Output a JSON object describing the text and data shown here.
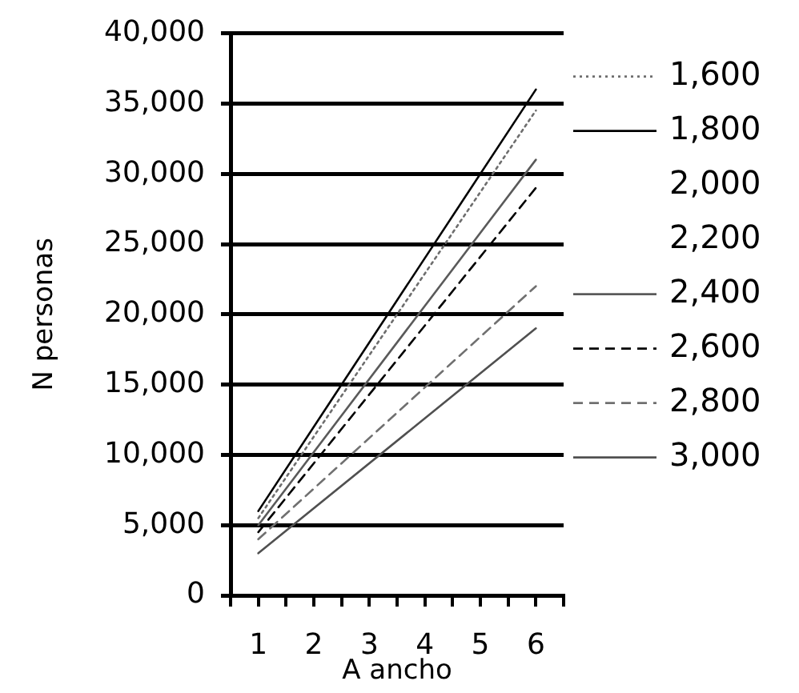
{
  "chart_data": {
    "type": "line",
    "xlabel": "A ancho",
    "ylabel": "N personas",
    "x": [
      1,
      6
    ],
    "series": [
      {
        "name": "1,600",
        "color": "#6e6e6e",
        "line_style": "dotted",
        "values": [
          5500,
          34500
        ]
      },
      {
        "name": "1,800",
        "color": "#000000",
        "values": [
          6000,
          36000
        ]
      },
      {
        "name": "2,000",
        "values": [
          null,
          null
        ]
      },
      {
        "name": "2,200",
        "values": [
          null,
          null
        ]
      },
      {
        "name": "2,400",
        "color": "#5a5a5a",
        "values": [
          5000,
          31000
        ]
      },
      {
        "name": "2,600",
        "color": "#000000",
        "line_style": "dashed",
        "values": [
          4500,
          29000
        ]
      },
      {
        "name": "2,800",
        "color": "#707070",
        "line_style": "dashed",
        "values": [
          4000,
          22000
        ]
      },
      {
        "name": "3,000",
        "color": "#505050",
        "values": [
          3000,
          19000
        ]
      }
    ],
    "xlim": [
      0.5,
      6.5
    ],
    "xticks": [
      {
        "value": 0.5,
        "label": null
      },
      1,
      {
        "value": 1.5,
        "label": null
      },
      2,
      {
        "value": 2.5,
        "label": null
      },
      3,
      {
        "value": 3.5,
        "label": null
      },
      4,
      {
        "value": 4.5,
        "label": null
      },
      5,
      {
        "value": 5.5,
        "label": null
      },
      6,
      {
        "value": 6.5,
        "label": null
      }
    ],
    "ylim": [
      0,
      40000
    ],
    "yticks": [
      0,
      {
        "value": 5000,
        "label": "5,000"
      },
      {
        "value": 10000,
        "label": "10,000"
      },
      {
        "value": 15000,
        "label": "15,000"
      },
      {
        "value": 20000,
        "label": "20,000"
      },
      {
        "value": 25000,
        "label": "25,000"
      },
      {
        "value": 30000,
        "label": "30,000"
      },
      {
        "value": 35000,
        "label": "35,000"
      },
      {
        "value": 40000,
        "label": "40,000"
      }
    ],
    "grid": "y",
    "legend": "right",
    "line_style": "solid"
  }
}
